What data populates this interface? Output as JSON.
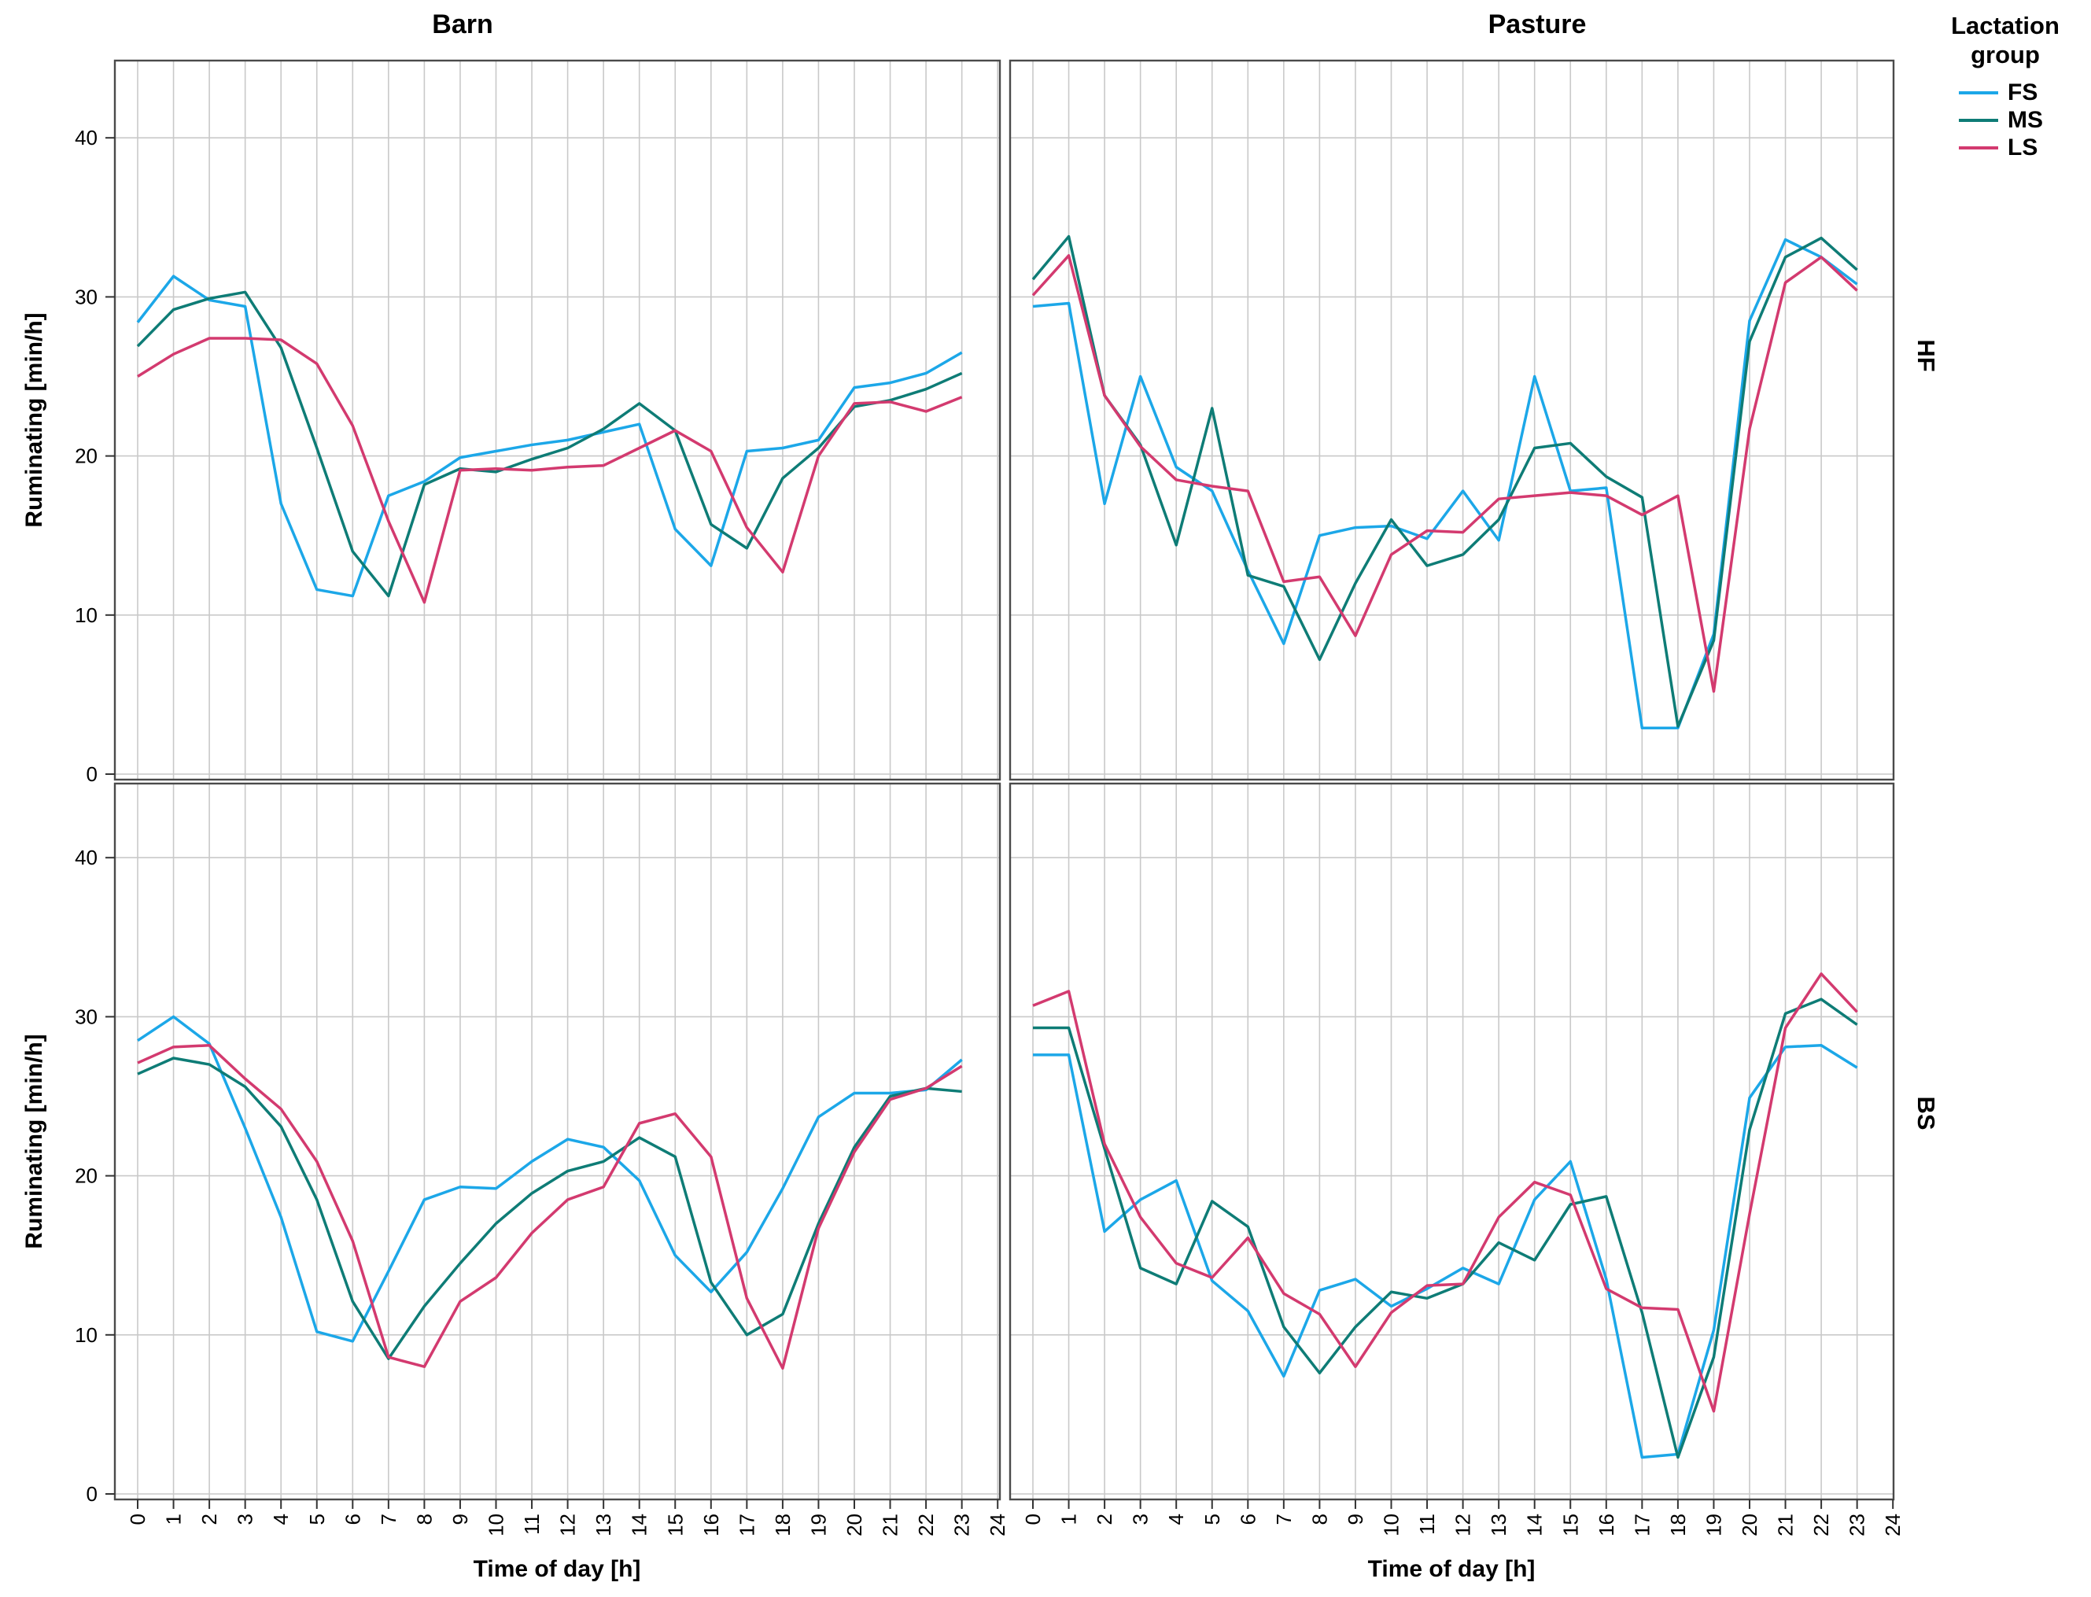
{
  "legend": {
    "title": "Lactation\ngroup",
    "entries": [
      {
        "name": "FS",
        "color": "#1ca7e8"
      },
      {
        "name": "MS",
        "color": "#0e7c76"
      },
      {
        "name": "LS",
        "color": "#d33a6f"
      }
    ]
  },
  "chart_data": {
    "type": "line",
    "facet_columns": [
      "Barn",
      "Pasture"
    ],
    "facet_rows": [
      "HF",
      "BS"
    ],
    "xlabel": "Time of day [h]",
    "ylabel": "Ruminating [min/h]",
    "x": [
      0,
      1,
      2,
      3,
      4,
      5,
      6,
      7,
      8,
      9,
      10,
      11,
      12,
      13,
      14,
      15,
      16,
      17,
      18,
      19,
      20,
      21,
      22,
      23
    ],
    "x_ticks": [
      0,
      1,
      2,
      3,
      4,
      5,
      6,
      7,
      8,
      9,
      10,
      11,
      12,
      13,
      14,
      15,
      16,
      17,
      18,
      19,
      20,
      21,
      22,
      23,
      24
    ],
    "y_ticks": [
      0,
      10,
      20,
      30,
      40
    ],
    "xlim": [
      0,
      24
    ],
    "ylim": [
      0,
      44.8
    ],
    "grid": true,
    "legend_position": "top-right-outside",
    "panels": [
      {
        "col": "Barn",
        "row": "HF",
        "series": [
          {
            "name": "FS",
            "values": [
              28.4,
              31.3,
              29.8,
              29.4,
              17.0,
              11.6,
              11.2,
              17.5,
              18.4,
              19.9,
              20.3,
              20.7,
              21.0,
              21.5,
              22.0,
              15.4,
              13.1,
              20.3,
              20.5,
              21.0,
              24.3,
              24.6,
              25.2,
              26.5
            ]
          },
          {
            "name": "MS",
            "values": [
              26.9,
              29.2,
              29.9,
              30.3,
              26.8,
              20.5,
              14.0,
              11.2,
              18.2,
              19.2,
              19.0,
              19.8,
              20.5,
              21.7,
              23.3,
              21.6,
              15.7,
              14.2,
              18.6,
              20.5,
              23.1,
              23.5,
              24.2,
              25.2
            ]
          },
          {
            "name": "LS",
            "values": [
              25.0,
              26.4,
              27.4,
              27.4,
              27.3,
              25.8,
              21.9,
              15.9,
              10.8,
              19.1,
              19.2,
              19.1,
              19.3,
              19.4,
              20.5,
              21.6,
              20.3,
              15.5,
              12.7,
              20.0,
              23.3,
              23.4,
              22.8,
              23.7
            ]
          }
        ]
      },
      {
        "col": "Pasture",
        "row": "HF",
        "series": [
          {
            "name": "FS",
            "values": [
              29.4,
              29.6,
              17.0,
              25.0,
              19.3,
              17.8,
              12.8,
              8.2,
              15.0,
              15.5,
              15.6,
              14.8,
              17.8,
              14.7,
              25.0,
              17.8,
              18.0,
              2.9,
              2.9,
              8.8,
              28.5,
              33.6,
              32.5,
              30.8
            ]
          },
          {
            "name": "MS",
            "values": [
              31.1,
              33.8,
              23.8,
              20.7,
              14.4,
              23.0,
              12.5,
              11.8,
              7.2,
              12.0,
              16.0,
              13.1,
              13.8,
              16.0,
              20.5,
              20.8,
              18.7,
              17.4,
              3.0,
              8.4,
              27.2,
              32.5,
              33.7,
              31.7
            ]
          },
          {
            "name": "LS",
            "values": [
              30.1,
              32.6,
              23.8,
              20.6,
              18.5,
              18.1,
              17.8,
              12.1,
              12.4,
              8.7,
              13.8,
              15.3,
              15.2,
              17.3,
              17.5,
              17.7,
              17.5,
              16.3,
              17.5,
              5.2,
              21.7,
              30.9,
              32.5,
              30.4
            ]
          }
        ]
      },
      {
        "col": "Barn",
        "row": "BS",
        "series": [
          {
            "name": "FS",
            "values": [
              28.5,
              30.0,
              28.3,
              23.0,
              17.4,
              10.2,
              9.6,
              14.0,
              18.5,
              19.3,
              19.2,
              20.9,
              22.3,
              21.8,
              19.7,
              15.0,
              12.7,
              15.2,
              19.2,
              23.7,
              25.2,
              25.2,
              25.4,
              27.3
            ]
          },
          {
            "name": "MS",
            "values": [
              26.4,
              27.4,
              27.0,
              25.6,
              23.1,
              18.5,
              12.1,
              8.5,
              11.8,
              14.5,
              17.0,
              18.9,
              20.3,
              20.9,
              22.4,
              21.2,
              13.3,
              10.0,
              11.3,
              17.0,
              21.8,
              25.0,
              25.5,
              25.3
            ]
          },
          {
            "name": "LS",
            "values": [
              27.1,
              28.1,
              28.2,
              26.1,
              24.2,
              20.9,
              15.9,
              8.6,
              8.0,
              12.1,
              13.6,
              16.4,
              18.5,
              19.3,
              23.3,
              23.9,
              21.2,
              12.3,
              7.9,
              16.7,
              21.5,
              24.8,
              25.5,
              26.9
            ]
          }
        ]
      },
      {
        "col": "Pasture",
        "row": "BS",
        "series": [
          {
            "name": "FS",
            "values": [
              27.6,
              27.6,
              16.5,
              18.5,
              19.7,
              13.4,
              11.5,
              7.4,
              12.8,
              13.5,
              11.8,
              12.9,
              14.2,
              13.2,
              18.5,
              20.9,
              13.5,
              2.3,
              2.5,
              10.3,
              24.9,
              28.1,
              28.2,
              26.8
            ]
          },
          {
            "name": "MS",
            "values": [
              29.3,
              29.3,
              21.7,
              14.2,
              13.2,
              18.4,
              16.8,
              10.5,
              7.6,
              10.5,
              12.7,
              12.3,
              13.2,
              15.8,
              14.7,
              18.2,
              18.7,
              11.4,
              2.3,
              8.6,
              22.9,
              30.2,
              31.1,
              29.5
            ]
          },
          {
            "name": "LS",
            "values": [
              30.7,
              31.6,
              22.0,
              17.4,
              14.5,
              13.6,
              16.1,
              12.6,
              11.3,
              8.0,
              11.4,
              13.1,
              13.2,
              17.4,
              19.6,
              18.8,
              12.9,
              11.7,
              11.6,
              5.2,
              17.6,
              29.3,
              32.7,
              30.3
            ]
          }
        ]
      }
    ],
    "colors": {
      "FS": "#1ca7e8",
      "MS": "#0e7c76",
      "LS": "#d33a6f"
    },
    "grid_color": "#c9c9c9",
    "border_color": "#4a4a4a"
  }
}
